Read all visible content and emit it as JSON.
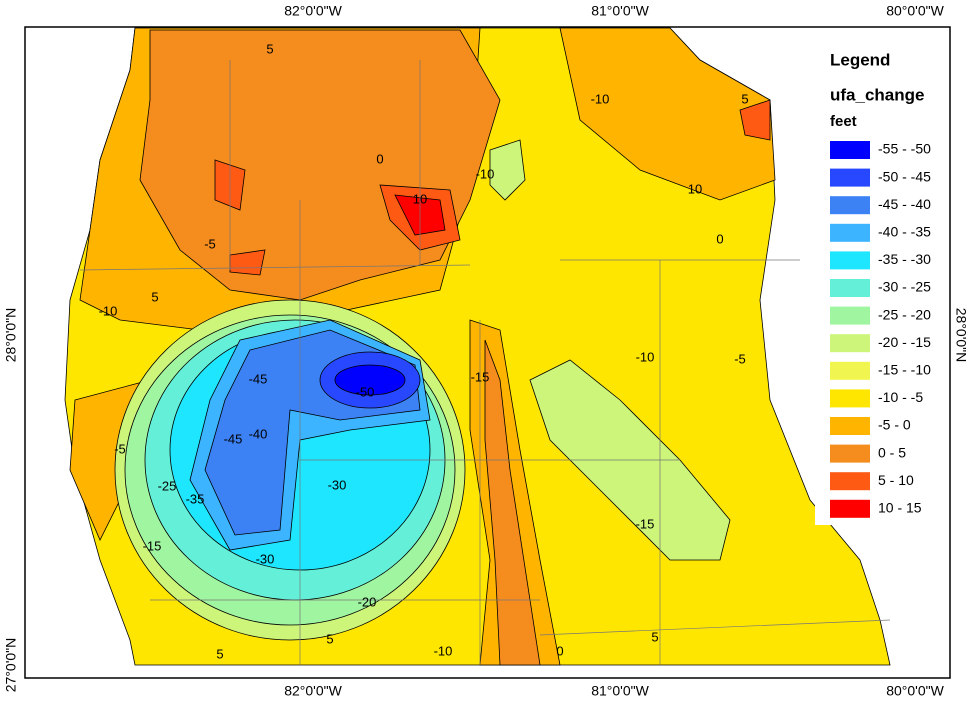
{
  "map": {
    "axes": {
      "top": [
        "82°0'0\"W",
        "81°0'0\"W",
        "80°0'0\"W"
      ],
      "bottom": [
        "82°0'0\"W",
        "81°0'0\"W",
        "80°0'0\"W"
      ],
      "left": [
        "28°0'0\"N",
        "27°0'0\"N"
      ],
      "right": [
        "28°0'0\"N"
      ]
    },
    "legend": {
      "title": "Legend",
      "layer": "ufa_change",
      "units": "feet",
      "classes": [
        {
          "label": "-55 - -50",
          "color": "#0000ff"
        },
        {
          "label": "-50 - -45",
          "color": "#2848ff"
        },
        {
          "label": "-45 - -40",
          "color": "#3c82f5"
        },
        {
          "label": "-40 - -35",
          "color": "#3cb4ff"
        },
        {
          "label": "-35 - -30",
          "color": "#1ee6ff"
        },
        {
          "label": "-30 - -25",
          "color": "#64f0d8"
        },
        {
          "label": "-25 - -20",
          "color": "#a0f5a0"
        },
        {
          "label": "-20 - -15",
          "color": "#ccf57a"
        },
        {
          "label": "-15 - -10",
          "color": "#f0f550"
        },
        {
          "label": "-10 - -5",
          "color": "#ffe600"
        },
        {
          "label": "-5 - 0",
          "color": "#ffb400"
        },
        {
          "label": "0 - 5",
          "color": "#f58c1e"
        },
        {
          "label": "5 - 10",
          "color": "#ff5a14"
        },
        {
          "label": "10 - 15",
          "color": "#ff0000"
        }
      ]
    },
    "contour_labels": [
      "-50",
      "-45",
      "-40",
      "-45",
      "-35",
      "-25",
      "-30",
      "-30",
      "-20",
      "-15",
      "-10",
      "-10",
      "-15",
      "-15",
      "-10",
      "-10",
      "-5",
      "-5",
      "0",
      "5",
      "5",
      "5",
      "5",
      "0",
      "10",
      "10",
      "-10",
      "5",
      "0",
      "-5",
      "5"
    ]
  }
}
